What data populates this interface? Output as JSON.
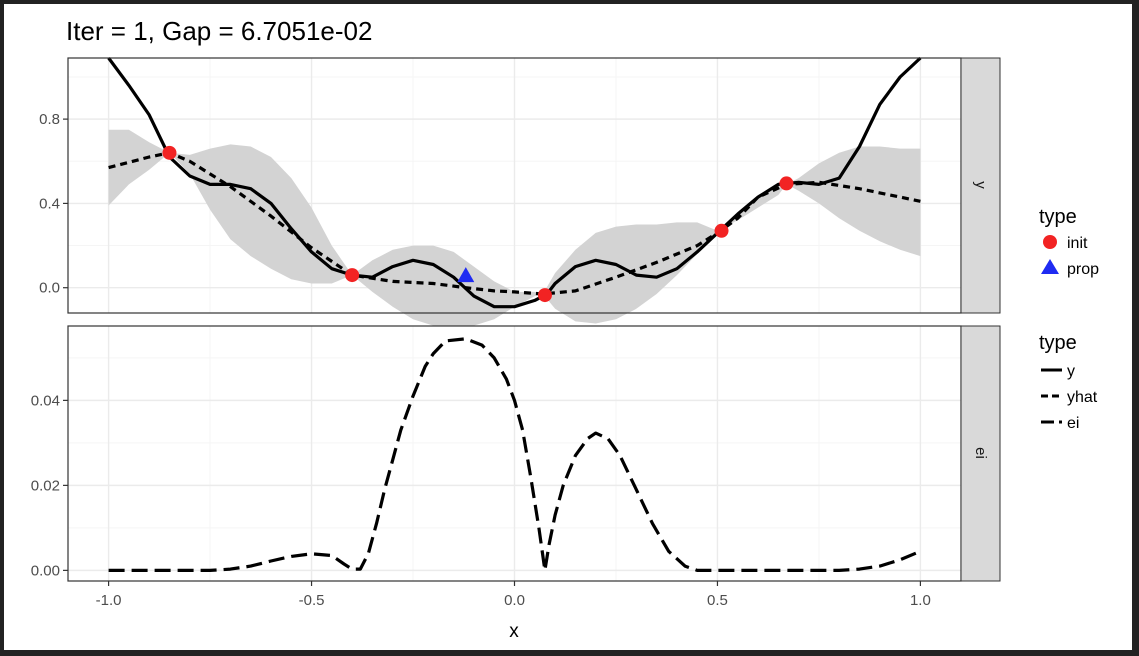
{
  "title": "Iter = 1, Gap = 6.7051e-02",
  "chart_data": [
    {
      "panel": "y",
      "type": "line",
      "xlabel": "x",
      "xlim": [
        -1.1,
        1.1
      ],
      "ylim": [
        -0.12,
        1.09
      ],
      "x_ticks": [
        "-1.0",
        "-0.5",
        "0.0",
        "0.5",
        "1.0"
      ],
      "x_tick_values": [
        -1.0,
        -0.5,
        0.0,
        0.5,
        1.0
      ],
      "y_ticks": [
        "0.0",
        "0.4",
        "0.8"
      ],
      "y_tick_values": [
        0.0,
        0.4,
        0.8
      ],
      "grid": true,
      "series": [
        {
          "name": "y",
          "style": "solid",
          "x": [
            -1.0,
            -0.95,
            -0.9,
            -0.85,
            -0.8,
            -0.75,
            -0.7,
            -0.65,
            -0.6,
            -0.55,
            -0.5,
            -0.45,
            -0.4,
            -0.35,
            -0.3,
            -0.25,
            -0.2,
            -0.15,
            -0.1,
            -0.05,
            0.0,
            0.05,
            0.08,
            0.1,
            0.15,
            0.2,
            0.25,
            0.3,
            0.35,
            0.4,
            0.45,
            0.5,
            0.55,
            0.6,
            0.65,
            0.7,
            0.75,
            0.8,
            0.85,
            0.9,
            0.95,
            1.0
          ],
          "y": [
            1.09,
            0.96,
            0.82,
            0.62,
            0.53,
            0.49,
            0.49,
            0.47,
            0.4,
            0.28,
            0.17,
            0.09,
            0.06,
            0.05,
            0.1,
            0.13,
            0.11,
            0.05,
            -0.04,
            -0.09,
            -0.09,
            -0.06,
            -0.03,
            0.02,
            0.1,
            0.13,
            0.11,
            0.06,
            0.05,
            0.09,
            0.17,
            0.26,
            0.35,
            0.43,
            0.49,
            0.5,
            0.49,
            0.52,
            0.67,
            0.87,
            1.0,
            1.09
          ]
        },
        {
          "name": "yhat",
          "style": "dashed",
          "x": [
            -1.0,
            -0.9,
            -0.85,
            -0.8,
            -0.7,
            -0.6,
            -0.5,
            -0.4,
            -0.3,
            -0.2,
            -0.12,
            -0.05,
            0.0,
            0.07,
            0.15,
            0.25,
            0.35,
            0.45,
            0.5,
            0.55,
            0.6,
            0.67,
            0.75,
            0.85,
            1.0
          ],
          "y": [
            0.57,
            0.62,
            0.64,
            0.6,
            0.48,
            0.34,
            0.19,
            0.06,
            0.03,
            0.02,
            0.0,
            -0.015,
            -0.02,
            -0.03,
            -0.015,
            0.05,
            0.12,
            0.2,
            0.26,
            0.33,
            0.43,
            0.49,
            0.5,
            0.47,
            0.41
          ]
        }
      ],
      "band": {
        "x": [
          -1.0,
          -0.95,
          -0.9,
          -0.85,
          -0.8,
          -0.75,
          -0.7,
          -0.65,
          -0.6,
          -0.55,
          -0.5,
          -0.45,
          -0.4,
          -0.35,
          -0.3,
          -0.25,
          -0.2,
          -0.15,
          -0.1,
          -0.05,
          0.0,
          0.05,
          0.07,
          0.1,
          0.15,
          0.2,
          0.25,
          0.3,
          0.35,
          0.4,
          0.45,
          0.5,
          0.55,
          0.6,
          0.65,
          0.67,
          0.7,
          0.75,
          0.8,
          0.85,
          0.9,
          0.95,
          1.0
        ],
        "upper": [
          0.75,
          0.75,
          0.69,
          0.64,
          0.63,
          0.66,
          0.68,
          0.67,
          0.62,
          0.52,
          0.38,
          0.2,
          0.06,
          0.13,
          0.18,
          0.2,
          0.2,
          0.17,
          0.1,
          0.03,
          -0.02,
          -0.02,
          -0.03,
          0.07,
          0.18,
          0.26,
          0.29,
          0.3,
          0.3,
          0.31,
          0.31,
          0.27,
          0.34,
          0.44,
          0.49,
          0.49,
          0.52,
          0.59,
          0.64,
          0.67,
          0.67,
          0.66,
          0.66
        ],
        "lower": [
          0.39,
          0.49,
          0.56,
          0.64,
          0.54,
          0.37,
          0.23,
          0.15,
          0.09,
          0.04,
          0.02,
          0.02,
          0.06,
          -0.02,
          -0.09,
          -0.15,
          -0.18,
          -0.19,
          -0.18,
          -0.15,
          -0.09,
          -0.04,
          -0.03,
          -0.1,
          -0.16,
          -0.17,
          -0.15,
          -0.1,
          -0.03,
          0.06,
          0.16,
          0.27,
          0.32,
          0.38,
          0.44,
          0.49,
          0.46,
          0.4,
          0.33,
          0.27,
          0.22,
          0.18,
          0.15
        ]
      },
      "points": [
        {
          "type": "init",
          "x": -0.85,
          "y": 0.64
        },
        {
          "type": "init",
          "x": -0.4,
          "y": 0.06
        },
        {
          "type": "init",
          "x": 0.075,
          "y": -0.035
        },
        {
          "type": "init",
          "x": 0.51,
          "y": 0.27
        },
        {
          "type": "init",
          "x": 0.67,
          "y": 0.495
        },
        {
          "type": "prop",
          "x": -0.12,
          "y": 0.055
        }
      ]
    },
    {
      "panel": "ei",
      "type": "line",
      "xlabel": "x",
      "xlim": [
        -1.1,
        1.1
      ],
      "ylim": [
        -0.0025,
        0.0575
      ],
      "x_ticks": [
        "-1.0",
        "-0.5",
        "0.0",
        "0.5",
        "1.0"
      ],
      "x_tick_values": [
        -1.0,
        -0.5,
        0.0,
        0.5,
        1.0
      ],
      "y_ticks": [
        "0.00",
        "0.02",
        "0.04"
      ],
      "y_tick_values": [
        0.0,
        0.02,
        0.04
      ],
      "grid": true,
      "series": [
        {
          "name": "ei",
          "style": "longdash",
          "x": [
            -1.0,
            -0.75,
            -0.7,
            -0.65,
            -0.6,
            -0.55,
            -0.5,
            -0.45,
            -0.42,
            -0.4,
            -0.38,
            -0.36,
            -0.34,
            -0.32,
            -0.3,
            -0.28,
            -0.25,
            -0.22,
            -0.2,
            -0.17,
            -0.12,
            -0.08,
            -0.05,
            -0.02,
            0.0,
            0.02,
            0.04,
            0.06,
            0.075,
            0.085,
            0.1,
            0.12,
            0.15,
            0.18,
            0.2,
            0.23,
            0.26,
            0.3,
            0.34,
            0.38,
            0.42,
            0.45,
            0.5,
            0.8,
            0.85,
            0.9,
            0.95,
            1.0
          ],
          "y": [
            0.0,
            0.0,
            0.0003,
            0.001,
            0.0022,
            0.0033,
            0.0039,
            0.0035,
            0.0015,
            0.0003,
            0.0003,
            0.004,
            0.011,
            0.019,
            0.026,
            0.033,
            0.041,
            0.048,
            0.051,
            0.054,
            0.0545,
            0.053,
            0.05,
            0.045,
            0.04,
            0.033,
            0.022,
            0.01,
            0.0,
            0.006,
            0.013,
            0.02,
            0.027,
            0.031,
            0.0323,
            0.031,
            0.027,
            0.019,
            0.011,
            0.0045,
            0.001,
            0.0,
            0.0,
            0.0,
            0.0003,
            0.001,
            0.0025,
            0.0045
          ]
        }
      ]
    }
  ],
  "strips": [
    "y",
    "ei"
  ],
  "legend_points": {
    "title": "type",
    "items": [
      {
        "label": "init",
        "color": "#f22323",
        "shape": "circle"
      },
      {
        "label": "prop",
        "color": "#1f2bf2",
        "shape": "triangle"
      }
    ]
  },
  "legend_lines": {
    "title": "type",
    "items": [
      {
        "label": "y",
        "style": "solid"
      },
      {
        "label": "yhat",
        "style": "dashed"
      },
      {
        "label": "ei",
        "style": "longdash"
      }
    ]
  },
  "colors": {
    "line": "#000000",
    "band": "#d3d3d3",
    "strip": "#d9d9d9",
    "grid_major": "#ebebeb",
    "grid_minor": "#f5f5f5",
    "init": "#f22323",
    "prop": "#1f2bf2"
  }
}
